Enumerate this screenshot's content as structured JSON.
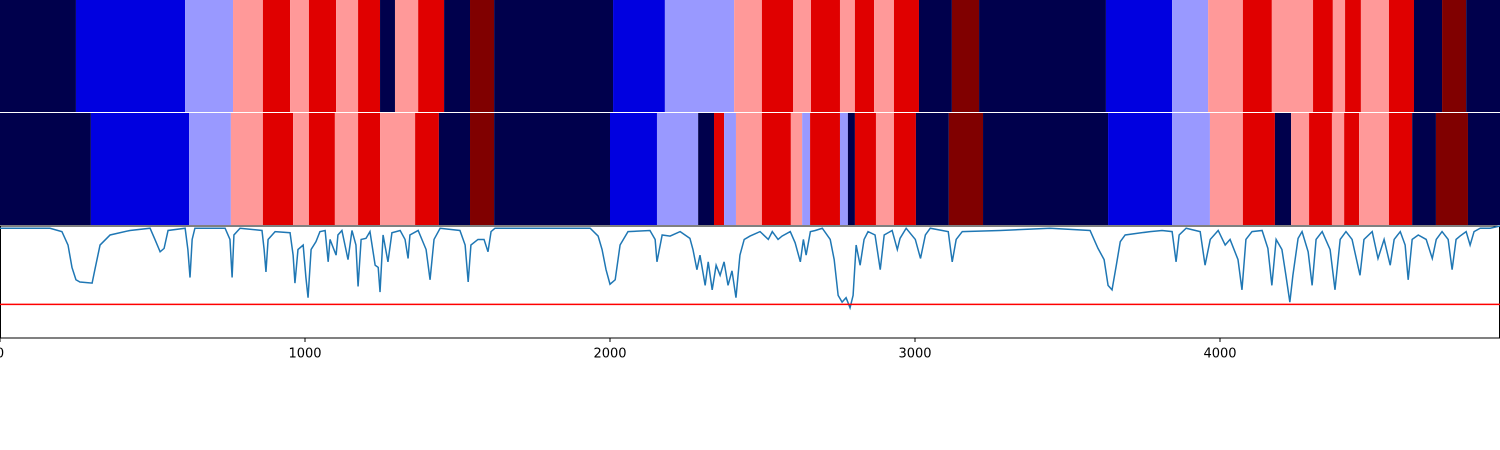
{
  "chart_data": {
    "type": "segments",
    "xlim": [
      0,
      4918
    ],
    "xticks": [
      0,
      1000,
      2000,
      3000,
      4000
    ],
    "rows": [
      {
        "edges": [
          0,
          249,
          607,
          764,
          862,
          951,
          1013,
          1102,
          1174,
          1246,
          1295,
          1371,
          1456,
          1541,
          1620,
          2010,
          2180,
          2407,
          2498,
          2600,
          2659,
          2754,
          2803,
          2866,
          2931,
          3013,
          3121,
          3210,
          3626,
          3843,
          3961,
          4075,
          4170,
          4305,
          4370,
          4410,
          4462,
          4554,
          4636,
          4728,
          4807,
          4918
        ],
        "colors": [
          "#00004c",
          "#0000e0",
          "#9999ff",
          "#ff9999",
          "#e00000",
          "#ff9999",
          "#e00000",
          "#ff9999",
          "#e00000",
          "#00004c",
          "#ff9999",
          "#e00000",
          "#00004c",
          "#800000",
          "#00004c",
          "#0000e0",
          "#9999ff",
          "#ff9999",
          "#e00000",
          "#ff9999",
          "#e00000",
          "#ff9999",
          "#e00000",
          "#ff9999",
          "#e00000",
          "#00004c",
          "#800000",
          "#00004c",
          "#0000e0",
          "#9999ff",
          "#ff9999",
          "#e00000",
          "#ff9999",
          "#e00000",
          "#ff9999",
          "#e00000",
          "#ff9999",
          "#e00000",
          "#00004c",
          "#800000",
          "#00004c"
        ]
      },
      {
        "edges": [
          0,
          298,
          620,
          757,
          862,
          961,
          1013,
          1098,
          1174,
          1246,
          1361,
          1439,
          1541,
          1620,
          2000,
          2154,
          2289,
          2341,
          2374,
          2413,
          2498,
          2593,
          2630,
          2656,
          2754,
          2780,
          2803,
          2872,
          2931,
          3003,
          3111,
          3223,
          3633,
          3843,
          3967,
          4075,
          4180,
          4233,
          4292,
          4367,
          4407,
          4456,
          4554,
          4630,
          4708,
          4813,
          4918
        ],
        "colors": [
          "#00004c",
          "#0000e0",
          "#9999ff",
          "#ff9999",
          "#e00000",
          "#ff9999",
          "#e00000",
          "#ff9999",
          "#e00000",
          "#ff9999",
          "#e00000",
          "#00004c",
          "#800000",
          "#00004c",
          "#0000e0",
          "#9999ff",
          "#00004c",
          "#e00000",
          "#9999ff",
          "#ff9999",
          "#e00000",
          "#ff9999",
          "#9999ff",
          "#e00000",
          "#9999ff",
          "#00004c",
          "#e00000",
          "#ff9999",
          "#e00000",
          "#00004c",
          "#800000",
          "#00004c",
          "#0000e0",
          "#9999ff",
          "#ff9999",
          "#e00000",
          "#00004c",
          "#ff9999",
          "#e00000",
          "#ff9999",
          "#e00000",
          "#ff9999",
          "#e00000",
          "#00004c",
          "#800000",
          "#00004c"
        ]
      }
    ],
    "line": {
      "color": "#1f77b4",
      "ylim": [
        0,
        1
      ],
      "x": [
        0,
        164,
        203,
        223,
        236,
        249,
        262,
        302,
        311,
        328,
        361,
        426,
        492,
        508,
        525,
        538,
        551,
        607,
        616,
        623,
        630,
        639,
        738,
        754,
        761,
        767,
        787,
        859,
        866,
        872,
        879,
        902,
        951,
        961,
        967,
        977,
        994,
        1003,
        1010,
        1020,
        1036,
        1049,
        1066,
        1076,
        1082,
        1102,
        1108,
        1121,
        1141,
        1154,
        1167,
        1174,
        1184,
        1200,
        1213,
        1230,
        1240,
        1246,
        1256,
        1272,
        1285,
        1312,
        1328,
        1338,
        1344,
        1371,
        1397,
        1410,
        1423,
        1443,
        1508,
        1525,
        1535,
        1544,
        1567,
        1587,
        1600,
        1610,
        1623,
        1935,
        1961,
        1974,
        1987,
        2000,
        2017,
        2033,
        2059,
        2131,
        2148,
        2154,
        2171,
        2197,
        2230,
        2262,
        2272,
        2285,
        2295,
        2312,
        2322,
        2335,
        2348,
        2361,
        2374,
        2387,
        2400,
        2413,
        2426,
        2440,
        2459,
        2492,
        2519,
        2532,
        2551,
        2564,
        2591,
        2607,
        2624,
        2634,
        2643,
        2657,
        2673,
        2696,
        2722,
        2735,
        2748,
        2761,
        2774,
        2787,
        2797,
        2807,
        2820,
        2833,
        2846,
        2869,
        2886,
        2899,
        2925,
        2942,
        2951,
        2971,
        3001,
        3018,
        3034,
        3050,
        3109,
        3122,
        3135,
        3155,
        3279,
        3443,
        3574,
        3600,
        3620,
        3633,
        3646,
        3660,
        3673,
        3689,
        3771,
        3810,
        3843,
        3856,
        3866,
        3889,
        3935,
        3951,
        3968,
        3994,
        4017,
        4033,
        4059,
        4072,
        4085,
        4105,
        4138,
        4157,
        4170,
        4184,
        4203,
        4216,
        4229,
        4239,
        4256,
        4269,
        4289,
        4302,
        4315,
        4335,
        4361,
        4377,
        4394,
        4413,
        4433,
        4459,
        4472,
        4499,
        4518,
        4538,
        4558,
        4571,
        4591,
        4607,
        4617,
        4630,
        4650,
        4676,
        4696,
        4709,
        4728,
        4748,
        4761,
        4774,
        4787,
        4807,
        4820,
        4833,
        4853,
        4886,
        4918
      ],
      "values": [
        0.98,
        0.98,
        0.95,
        0.83,
        0.63,
        0.52,
        0.5,
        0.49,
        0.61,
        0.83,
        0.92,
        0.96,
        0.98,
        0.88,
        0.77,
        0.8,
        0.96,
        0.98,
        0.79,
        0.54,
        0.88,
        0.98,
        0.98,
        0.88,
        0.54,
        0.92,
        0.98,
        0.96,
        0.79,
        0.59,
        0.88,
        0.95,
        0.94,
        0.74,
        0.49,
        0.79,
        0.83,
        0.54,
        0.36,
        0.79,
        0.86,
        0.95,
        0.96,
        0.68,
        0.88,
        0.74,
        0.92,
        0.96,
        0.7,
        0.96,
        0.83,
        0.46,
        0.88,
        0.89,
        0.95,
        0.65,
        0.63,
        0.41,
        0.92,
        0.68,
        0.94,
        0.96,
        0.88,
        0.71,
        0.92,
        0.96,
        0.79,
        0.52,
        0.88,
        0.98,
        0.96,
        0.83,
        0.5,
        0.83,
        0.88,
        0.88,
        0.77,
        0.95,
        0.98,
        0.98,
        0.91,
        0.79,
        0.61,
        0.48,
        0.52,
        0.83,
        0.95,
        0.96,
        0.88,
        0.68,
        0.92,
        0.91,
        0.95,
        0.89,
        0.79,
        0.61,
        0.74,
        0.47,
        0.68,
        0.43,
        0.65,
        0.56,
        0.68,
        0.47,
        0.6,
        0.36,
        0.74,
        0.88,
        0.91,
        0.95,
        0.88,
        0.95,
        0.88,
        0.91,
        0.95,
        0.85,
        0.68,
        0.88,
        0.74,
        0.95,
        0.96,
        0.98,
        0.88,
        0.7,
        0.38,
        0.32,
        0.36,
        0.27,
        0.38,
        0.83,
        0.65,
        0.88,
        0.95,
        0.92,
        0.61,
        0.92,
        0.96,
        0.79,
        0.89,
        0.98,
        0.88,
        0.71,
        0.92,
        0.98,
        0.95,
        0.68,
        0.88,
        0.95,
        0.96,
        0.98,
        0.96,
        0.8,
        0.7,
        0.47,
        0.43,
        0.65,
        0.86,
        0.92,
        0.95,
        0.96,
        0.95,
        0.68,
        0.92,
        0.98,
        0.95,
        0.65,
        0.88,
        0.96,
        0.83,
        0.88,
        0.7,
        0.43,
        0.88,
        0.95,
        0.96,
        0.8,
        0.47,
        0.88,
        0.79,
        0.56,
        0.32,
        0.56,
        0.89,
        0.95,
        0.77,
        0.47,
        0.88,
        0.95,
        0.79,
        0.43,
        0.88,
        0.95,
        0.88,
        0.56,
        0.88,
        0.95,
        0.71,
        0.88,
        0.65,
        0.88,
        0.95,
        0.83,
        0.52,
        0.88,
        0.92,
        0.88,
        0.71,
        0.88,
        0.95,
        0.88,
        0.61,
        0.88,
        0.91,
        0.95,
        0.83,
        0.95,
        0.98,
        0.98,
        1.0
      ]
    },
    "threshold": {
      "value": 0.3,
      "color": "#ff0000"
    }
  }
}
